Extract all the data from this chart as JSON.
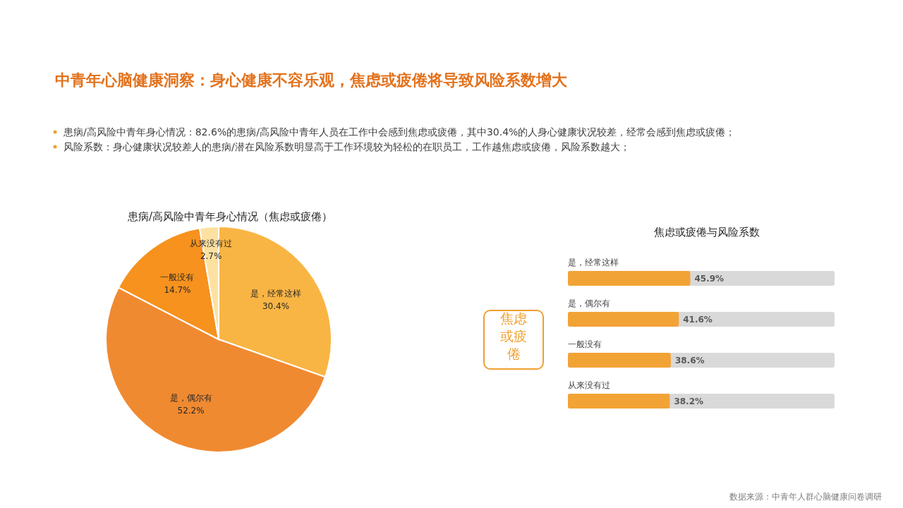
{
  "chart_data": [
    {
      "type": "other",
      "title": "中青年心脑健康洞察：身心健康不容乐观，焦虑或疲倦将导致风险系数增大",
      "annotations": [
        "患病/高风险中青年身心情况：82.6%的患病/高风险中青年人员在工作中会感到焦虑或疲倦，其中30.4%的人身心健康状况较差，经常会感到焦虑或疲倦；",
        "风险系数：身心健康状况较差人的患病/潜在风险系数明显高于工作环境较为轻松的在职员工，工作越焦虑或疲倦，风险系数越大；",
        "数据来源：中青年人群心脑健康问卷调研"
      ]
    },
    {
      "type": "pie",
      "title": "患病/高风险中青年身心情况（焦虑或疲倦）",
      "categories": [
        "是，经常这样",
        "是，偶尔有",
        "一般没有",
        "从来没有过"
      ],
      "values": [
        30.4,
        52.2,
        14.7,
        2.7
      ],
      "value_labels": [
        "30.4%",
        "52.2%",
        "14.7%",
        "2.7%"
      ],
      "colors": [
        "#f9b544",
        "#f08a31",
        "#f7921e",
        "#fde1a0"
      ]
    },
    {
      "type": "bar",
      "orientation": "horizontal",
      "title": "焦虑或疲倦与风险系数",
      "ylabel": "焦虑或疲倦",
      "categories": [
        "是，经常这样",
        "是，偶尔有",
        "一般没有",
        "从来没有过"
      ],
      "xlim": [
        0,
        100
      ],
      "series": [
        {
          "color": "#f2a336",
          "values": [
            45.9,
            41.6,
            38.6,
            38.2
          ],
          "value_labels": [
            "45.9%",
            "41.6%",
            "38.6%",
            "38.2%"
          ]
        }
      ]
    }
  ]
}
